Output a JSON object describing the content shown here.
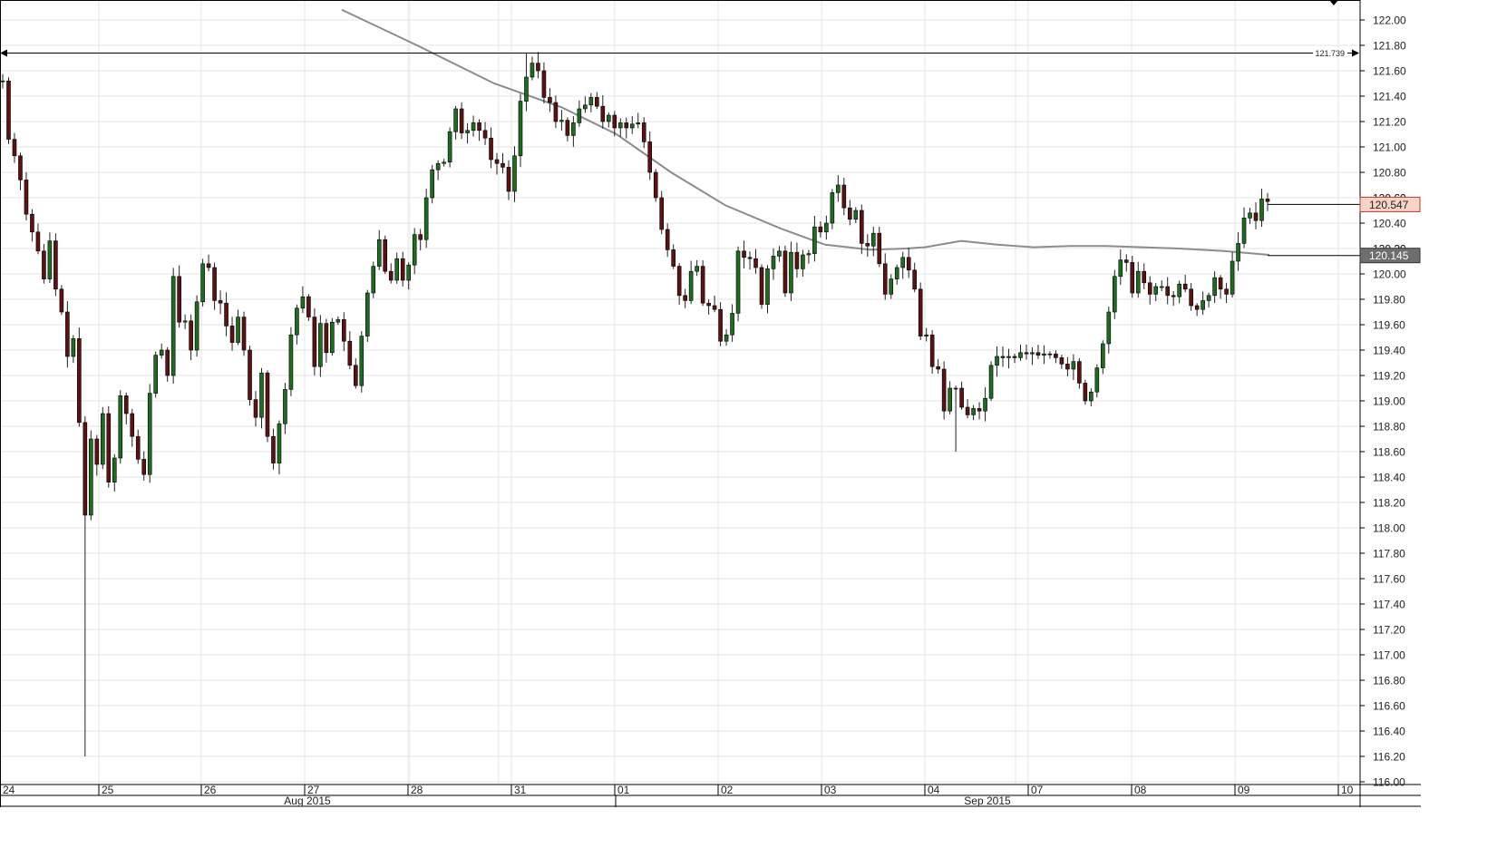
{
  "chart_data": {
    "type": "candlestick",
    "title": "",
    "xlabel": "",
    "ylabel": "",
    "ylim": [
      116.0,
      122.0
    ],
    "y_ticks": [
      "122.00",
      "121.80",
      "121.60",
      "121.40",
      "121.20",
      "121.00",
      "120.80",
      "120.60",
      "120.40",
      "120.20",
      "120.00",
      "119.80",
      "119.60",
      "119.40",
      "119.20",
      "119.00",
      "118.80",
      "118.60",
      "118.40",
      "118.20",
      "118.00",
      "117.80",
      "117.60",
      "117.40",
      "117.20",
      "117.00",
      "116.80",
      "116.60",
      "116.40",
      "116.20",
      "116.00"
    ],
    "day_labels": [
      "24",
      "25",
      "26",
      "27",
      "28",
      "31",
      "01",
      "02",
      "03",
      "04",
      "07",
      "08",
      "09",
      "10"
    ],
    "month_labels": [
      "Aug 2015",
      "Sep 2015"
    ],
    "grid": true,
    "colors": {
      "up": "#1f6b1f",
      "down": "#5a1212",
      "wick": "#222222",
      "ma": "#8c8c8c",
      "grid": "#e4e4e4",
      "last_badge_bg": "#f9d3c6",
      "last_badge_border": "#c0392b",
      "ma_badge_bg": "#6e6e6e"
    },
    "high_marker": {
      "label": "121.739",
      "value": 121.739
    },
    "last_price": {
      "label": "120.547",
      "value": 120.547
    },
    "moving_average_last": {
      "label": "120.145",
      "value": 120.145
    },
    "hidden_badge_ticks": [
      "120.60",
      "120.20"
    ],
    "open": 121.52,
    "closes": [
      121.52,
      121.06,
      120.93,
      120.74,
      120.47,
      120.33,
      120.18,
      119.96,
      120.26,
      119.88,
      119.7,
      119.35,
      119.49,
      118.83,
      118.1,
      118.7,
      118.5,
      118.9,
      118.36,
      118.55,
      119.04,
      118.9,
      118.72,
      118.54,
      118.42,
      119.06,
      119.36,
      119.4,
      119.2,
      119.98,
      119.62,
      119.63,
      119.4,
      119.78,
      120.08,
      120.05,
      119.79,
      119.77,
      119.59,
      119.46,
      119.66,
      119.4,
      119.01,
      118.87,
      119.22,
      118.72,
      118.51,
      118.82,
      119.09,
      119.52,
      119.73,
      119.82,
      119.66,
      119.27,
      119.61,
      119.38,
      119.62,
      119.64,
      119.47,
      119.28,
      119.12,
      119.51,
      119.85,
      120.06,
      120.27,
      120.02,
      119.95,
      120.12,
      119.95,
      120.07,
      120.31,
      120.27,
      120.6,
      120.82,
      120.87,
      120.88,
      121.12,
      121.3,
      121.11,
      121.13,
      121.19,
      121.13,
      121.07,
      120.9,
      120.87,
      120.84,
      120.65,
      120.93,
      121.36,
      121.55,
      121.66,
      121.6,
      121.39,
      121.35,
      121.2,
      121.21,
      121.09,
      121.19,
      121.3,
      121.33,
      121.39,
      121.32,
      121.2,
      121.25,
      121.15,
      121.19,
      121.15,
      121.18,
      121.19,
      121.04,
      120.8,
      120.6,
      120.35,
      120.19,
      120.06,
      119.83,
      119.79,
      120.02,
      120.06,
      119.77,
      119.75,
      119.72,
      119.47,
      119.52,
      119.69,
      120.18,
      120.13,
      120.12,
      120.05,
      119.76,
      120.04,
      120.14,
      120.18,
      119.85,
      120.17,
      120.04,
      120.15,
      120.16,
      120.37,
      120.33,
      120.4,
      120.64,
      120.7,
      120.52,
      120.43,
      120.5,
      120.24,
      120.22,
      120.32,
      120.08,
      119.84,
      119.96,
      120.05,
      120.13,
      120.03,
      119.88,
      119.51,
      119.52,
      119.27,
      119.25,
      118.92,
      119.1,
      119.1,
      118.95,
      118.89,
      118.94,
      118.92,
      119.02,
      119.28,
      119.35,
      119.34,
      119.35,
      119.34,
      119.38,
      119.37,
      119.38,
      119.36,
      119.37,
      119.37,
      119.34,
      119.29,
      119.25,
      119.31,
      119.14,
      119.0,
      119.07,
      119.26,
      119.45,
      119.7,
      119.98,
      120.11,
      120.09,
      119.85,
      120.02,
      119.93,
      119.84,
      119.9,
      119.9,
      119.83,
      119.82,
      119.92,
      119.88,
      119.75,
      119.72,
      119.79,
      119.83,
      119.97,
      119.88,
      119.84,
      120.1,
      120.24,
      120.44,
      120.48,
      120.42,
      120.59,
      120.57
    ],
    "ma_x": [
      377,
      460,
      545,
      620,
      680,
      740,
      800,
      860,
      910,
      960,
      1000,
      1020,
      1060,
      1100,
      1140,
      1180,
      1220,
      1260,
      1300,
      1350,
      1400
    ],
    "ma_y": [
      122.08,
      121.8,
      121.5,
      121.31,
      121.1,
      120.8,
      120.54,
      120.36,
      120.23,
      120.19,
      120.2,
      120.21,
      120.26,
      120.23,
      120.21,
      120.22,
      120.22,
      120.21,
      120.2,
      120.18,
      120.15
    ]
  }
}
